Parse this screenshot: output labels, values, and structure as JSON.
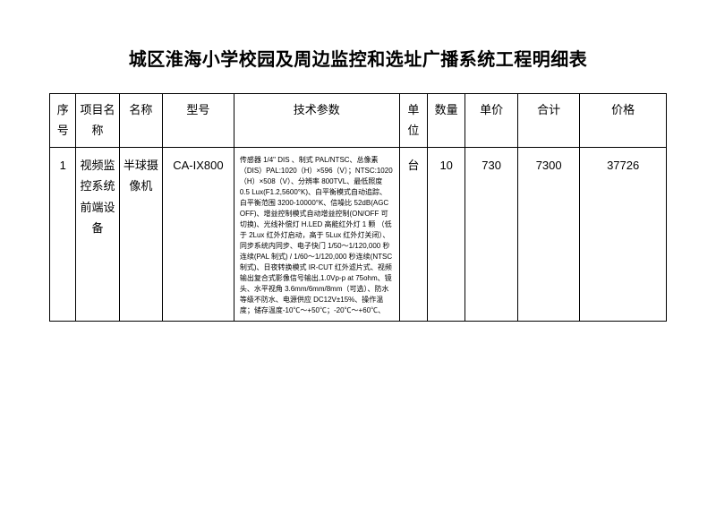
{
  "title": "城区淮海小学校园及周边监控和选址广播系统工程明细表",
  "headers": {
    "seq": "序号",
    "proj": "项目名称",
    "name": "名称",
    "model": "型号",
    "tech": "技术参数",
    "unit": "单位",
    "qty": "数量",
    "price": "单价",
    "total": "合计",
    "remark": "价格"
  },
  "row": {
    "seq": "1",
    "proj": "视频监控系统前端设备",
    "name": "半球摄像机",
    "model": "CA-IX800",
    "tech": "传感器 1/4\" DIS 、制式 PAL/NTSC、总像素（DIS）PAL:1020（H）×596（V）；NTSC:1020（H）×508（V）、分辨率 800TVL、最低照度 0.5 Lux(F1.2,5600°K)、白平衡模式自动追踪、白平衡范围 3200-10000°K、信噪比 52dB(AGC OFF)、增益控制模式自动增益控制(ON/OFF 可切换)、光线补偿灯 H.LED 高能红外灯 1 颗 （低于 2Lux 红外灯启动，高于 5Lux 红外灯关闭）、同步系统内同步、电子快门 1/50～1/120,000 秒连续(PAL 制式)     /    1/60～1/120,000 秒连续(NTSC 制式)、日夜转换模式 IR-CUT  红外滤片式、视频输出复合式影像信号输出,1.0Vp-p          at 75ohm、镜头、水平视角 3.6mm/6mm/8mm（可选）、防水等级不防水、电源供应 DC12V±15%、操作温度；储存温度-10℃～+50℃；-20℃～+60℃、",
    "unit": "台",
    "qty": "10",
    "price": "730",
    "total": "7300",
    "remark": "37726"
  }
}
